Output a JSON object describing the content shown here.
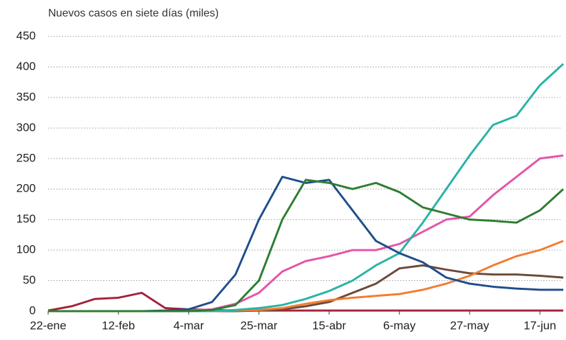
{
  "chart_data": {
    "type": "line",
    "title": "Nuevos casos en siete días (miles)",
    "categories": [
      "22-ene",
      null,
      null,
      "12-feb",
      null,
      null,
      "4-mar",
      null,
      null,
      "25-mar",
      null,
      null,
      "15-abr",
      null,
      null,
      "6-may",
      null,
      null,
      "27-may",
      null,
      null,
      "17-jun",
      null
    ],
    "series": [
      {
        "color": "#a3243b",
        "values": [
          1,
          8,
          20,
          22,
          30,
          5,
          3,
          2,
          1,
          1,
          1,
          1,
          1,
          1,
          1,
          1,
          1,
          1,
          1,
          1,
          1,
          1,
          1
        ]
      },
      {
        "color": "#6b4a3a",
        "values": [
          0,
          0,
          0,
          0,
          0,
          0,
          0,
          0,
          0,
          1,
          3,
          8,
          15,
          30,
          45,
          70,
          75,
          68,
          62,
          60,
          60,
          58,
          55
        ]
      },
      {
        "color": "#f47c30",
        "values": [
          0,
          0,
          0,
          0,
          0,
          0,
          0,
          0,
          1,
          2,
          5,
          12,
          18,
          22,
          25,
          28,
          35,
          45,
          58,
          75,
          90,
          100,
          115
        ]
      },
      {
        "color": "#e455a8",
        "values": [
          0,
          0,
          0,
          0,
          0,
          0,
          1,
          3,
          12,
          30,
          65,
          82,
          90,
          100,
          100,
          110,
          130,
          150,
          155,
          190,
          220,
          250,
          255
        ]
      },
      {
        "color": "#2ab3a6",
        "values": [
          0,
          0,
          0,
          0,
          0,
          0,
          0,
          0,
          2,
          5,
          10,
          20,
          33,
          50,
          75,
          95,
          145,
          200,
          255,
          305,
          320,
          370,
          405
        ]
      },
      {
        "color": "#1f4e8c",
        "values": [
          0,
          0,
          0,
          0,
          0,
          1,
          3,
          15,
          60,
          150,
          220,
          210,
          215,
          165,
          115,
          95,
          80,
          55,
          45,
          40,
          37,
          35,
          35
        ]
      },
      {
        "color": "#2e7d32",
        "values": [
          0,
          0,
          0,
          0,
          0,
          0,
          0,
          2,
          10,
          50,
          150,
          215,
          210,
          200,
          210,
          195,
          170,
          160,
          150,
          148,
          145,
          165,
          200
        ]
      }
    ],
    "ylim": [
      0,
      450
    ],
    "yticks": [
      0,
      50,
      100,
      150,
      200,
      250,
      300,
      350,
      400,
      450
    ],
    "grid": true
  }
}
